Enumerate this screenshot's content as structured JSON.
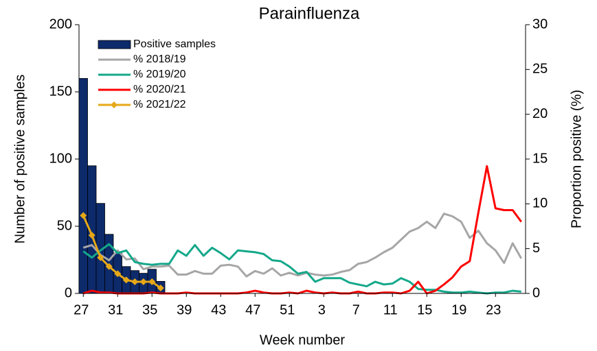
{
  "chart_data": {
    "type": "bar",
    "title": "Parainfluenza",
    "x_label": "Week number",
    "y_label": "Number of positive samples",
    "y2_label": "Proportion positive (%)",
    "categories": [
      "27",
      null,
      null,
      null,
      "31",
      null,
      null,
      null,
      "35",
      null,
      null,
      null,
      "39",
      null,
      null,
      null,
      "43",
      null,
      null,
      null,
      "47",
      null,
      null,
      null,
      "51",
      null,
      null,
      null,
      "3",
      null,
      null,
      null,
      "7",
      null,
      null,
      null,
      "11",
      null,
      null,
      null,
      "15",
      null,
      null,
      null,
      "19",
      null,
      null,
      null,
      "23",
      null,
      null,
      null
    ],
    "ylim": [
      0,
      200
    ],
    "yticks": [
      0,
      50,
      100,
      150,
      200
    ],
    "y2lim": [
      0,
      30
    ],
    "y2ticks": [
      0,
      5,
      10,
      15,
      20,
      25,
      30
    ],
    "legend": "upper left",
    "series": [
      {
        "name": "Positive samples",
        "type": "bar",
        "color": "#0d2a6b",
        "values": [
          160,
          95,
          67,
          44,
          30,
          20,
          17,
          15,
          18,
          9,
          null,
          null,
          null,
          null,
          null,
          null,
          null,
          null,
          null,
          null,
          null,
          null,
          null,
          null,
          null,
          null,
          null,
          null,
          null,
          null,
          null,
          null,
          null,
          null,
          null,
          null,
          null,
          null,
          null,
          null,
          null,
          null,
          null,
          null,
          null,
          null,
          null,
          null,
          null,
          null,
          null,
          null
        ]
      },
      {
        "name": "% 2018/19",
        "type": "line",
        "axis": "y2",
        "color": "#a6a6a6",
        "values": [
          5.1,
          5.4,
          4.3,
          3.7,
          4.8,
          3.8,
          3.9,
          2.7,
          3.0,
          3.0,
          3.1,
          2.1,
          2.1,
          2.5,
          2.2,
          2.2,
          3.1,
          3.2,
          3.0,
          1.9,
          2.5,
          2.2,
          2.8,
          2.0,
          2.3,
          2.0,
          2.3,
          2.1,
          2.0,
          2.1,
          2.4,
          2.6,
          3.3,
          3.5,
          4.0,
          4.6,
          5.1,
          6.0,
          6.9,
          7.3,
          8.0,
          7.3,
          8.9,
          8.6,
          8.0,
          6.2,
          7.0,
          5.6,
          4.8,
          3.4,
          5.6,
          3.9
        ]
      },
      {
        "name": "% 2019/20",
        "type": "line",
        "axis": "y2",
        "color": "#14a88a",
        "values": [
          4.7,
          4.0,
          4.8,
          5.5,
          4.5,
          4.8,
          3.5,
          3.3,
          3.2,
          3.3,
          3.3,
          4.8,
          4.2,
          5.4,
          4.2,
          5.1,
          4.5,
          3.8,
          4.8,
          4.7,
          4.6,
          4.4,
          3.7,
          3.6,
          3.0,
          2.2,
          2.4,
          1.3,
          1.7,
          1.7,
          1.7,
          1.2,
          1.0,
          0.8,
          1.3,
          1.0,
          1.1,
          1.7,
          1.3,
          0.5,
          0.4,
          0.4,
          0.2,
          0.1,
          0.1,
          0.2,
          0.1,
          0.0,
          0.1,
          0.1,
          0.3,
          0.2
        ]
      },
      {
        "name": "% 2020/21",
        "type": "line",
        "axis": "y2",
        "color": "#ff0000",
        "values": [
          0.0,
          0.3,
          0.1,
          0.1,
          0.0,
          0.0,
          0.0,
          0.0,
          0.1,
          0.0,
          0.0,
          0.0,
          0.1,
          0.0,
          0.0,
          0.0,
          0.0,
          0.0,
          0.0,
          0.1,
          0.3,
          0.1,
          0.0,
          0.0,
          0.1,
          0.0,
          0.3,
          0.1,
          0.0,
          0.1,
          0.0,
          0.0,
          0.2,
          0.0,
          0.0,
          0.1,
          0.1,
          0.0,
          0.3,
          1.3,
          0.0,
          0.3,
          1.0,
          1.8,
          3.0,
          3.6,
          9.0,
          14.2,
          9.5,
          9.3,
          9.3,
          8.0
        ]
      },
      {
        "name": "% 2021/22",
        "type": "line",
        "axis": "y2",
        "color": "#e6a817",
        "marker": "diamond",
        "values": [
          8.7,
          6.5,
          4.0,
          3.0,
          2.2,
          1.5,
          1.3,
          1.3,
          1.3,
          0.6,
          null,
          null,
          null,
          null,
          null,
          null,
          null,
          null,
          null,
          null,
          null,
          null,
          null,
          null,
          null,
          null,
          null,
          null,
          null,
          null,
          null,
          null,
          null,
          null,
          null,
          null,
          null,
          null,
          null,
          null,
          null,
          null,
          null,
          null,
          null,
          null,
          null,
          null,
          null,
          null,
          null,
          null
        ]
      }
    ]
  }
}
